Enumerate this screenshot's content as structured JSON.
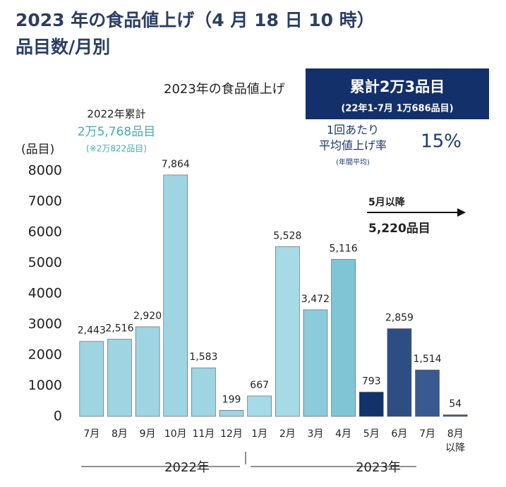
{
  "chart_data": {
    "type": "bar",
    "title": "2023 年の食品値上げ（4 月 18 日 10 時）",
    "subtitle": "品目数/月別",
    "y_label": "(品目)",
    "categories": [
      "7月",
      "8月",
      "9月",
      "10月",
      "11月",
      "12月",
      "1月",
      "2月",
      "3月",
      "4月",
      "5月",
      "6月",
      "7月",
      "8月 以降"
    ],
    "values": [
      2443,
      2516,
      2920,
      7864,
      1583,
      199,
      667,
      5528,
      3472,
      5116,
      793,
      2859,
      1514,
      54
    ],
    "value_labels": [
      "2,443",
      "2,516",
      "2,920",
      "7,864",
      "1,583",
      "199",
      "667",
      "5,528",
      "3,472",
      "5,116",
      "793",
      "2,859",
      "1,514",
      "54"
    ],
    "colors": [
      "#9fd4e2",
      "#9fd4e2",
      "#9fd4e2",
      "#9fd4e2",
      "#9fd4e2",
      "#9fd4e2",
      "#a6dae6",
      "#a6dae6",
      "#8ccbdb",
      "#7fc5d6",
      "#12336a",
      "#2e4d82",
      "#3a5990",
      "#3a5990"
    ],
    "groups": [
      "2022年",
      "2023年"
    ],
    "ylim": [
      0,
      8000
    ],
    "yticks": [
      0,
      1000,
      2000,
      3000,
      4000,
      5000,
      6000,
      7000,
      8000
    ],
    "grid": false,
    "annotations": {
      "headline": "2023年の食品値上げ",
      "box_main": "累計2万3品目",
      "box_sub": "(22年1-7月 1万686品目)",
      "rate_label_1": "1回あたり",
      "rate_label_2": "平均値上げ率",
      "rate_value": "15%",
      "rate_note": "(年間平均)",
      "after_may": "5月以降",
      "after_may_count": "5,220品目",
      "total_2022": "2022年累計",
      "total_2022_count": "2万5,768品目",
      "total_2022_note": "(※2万822品目)"
    }
  }
}
